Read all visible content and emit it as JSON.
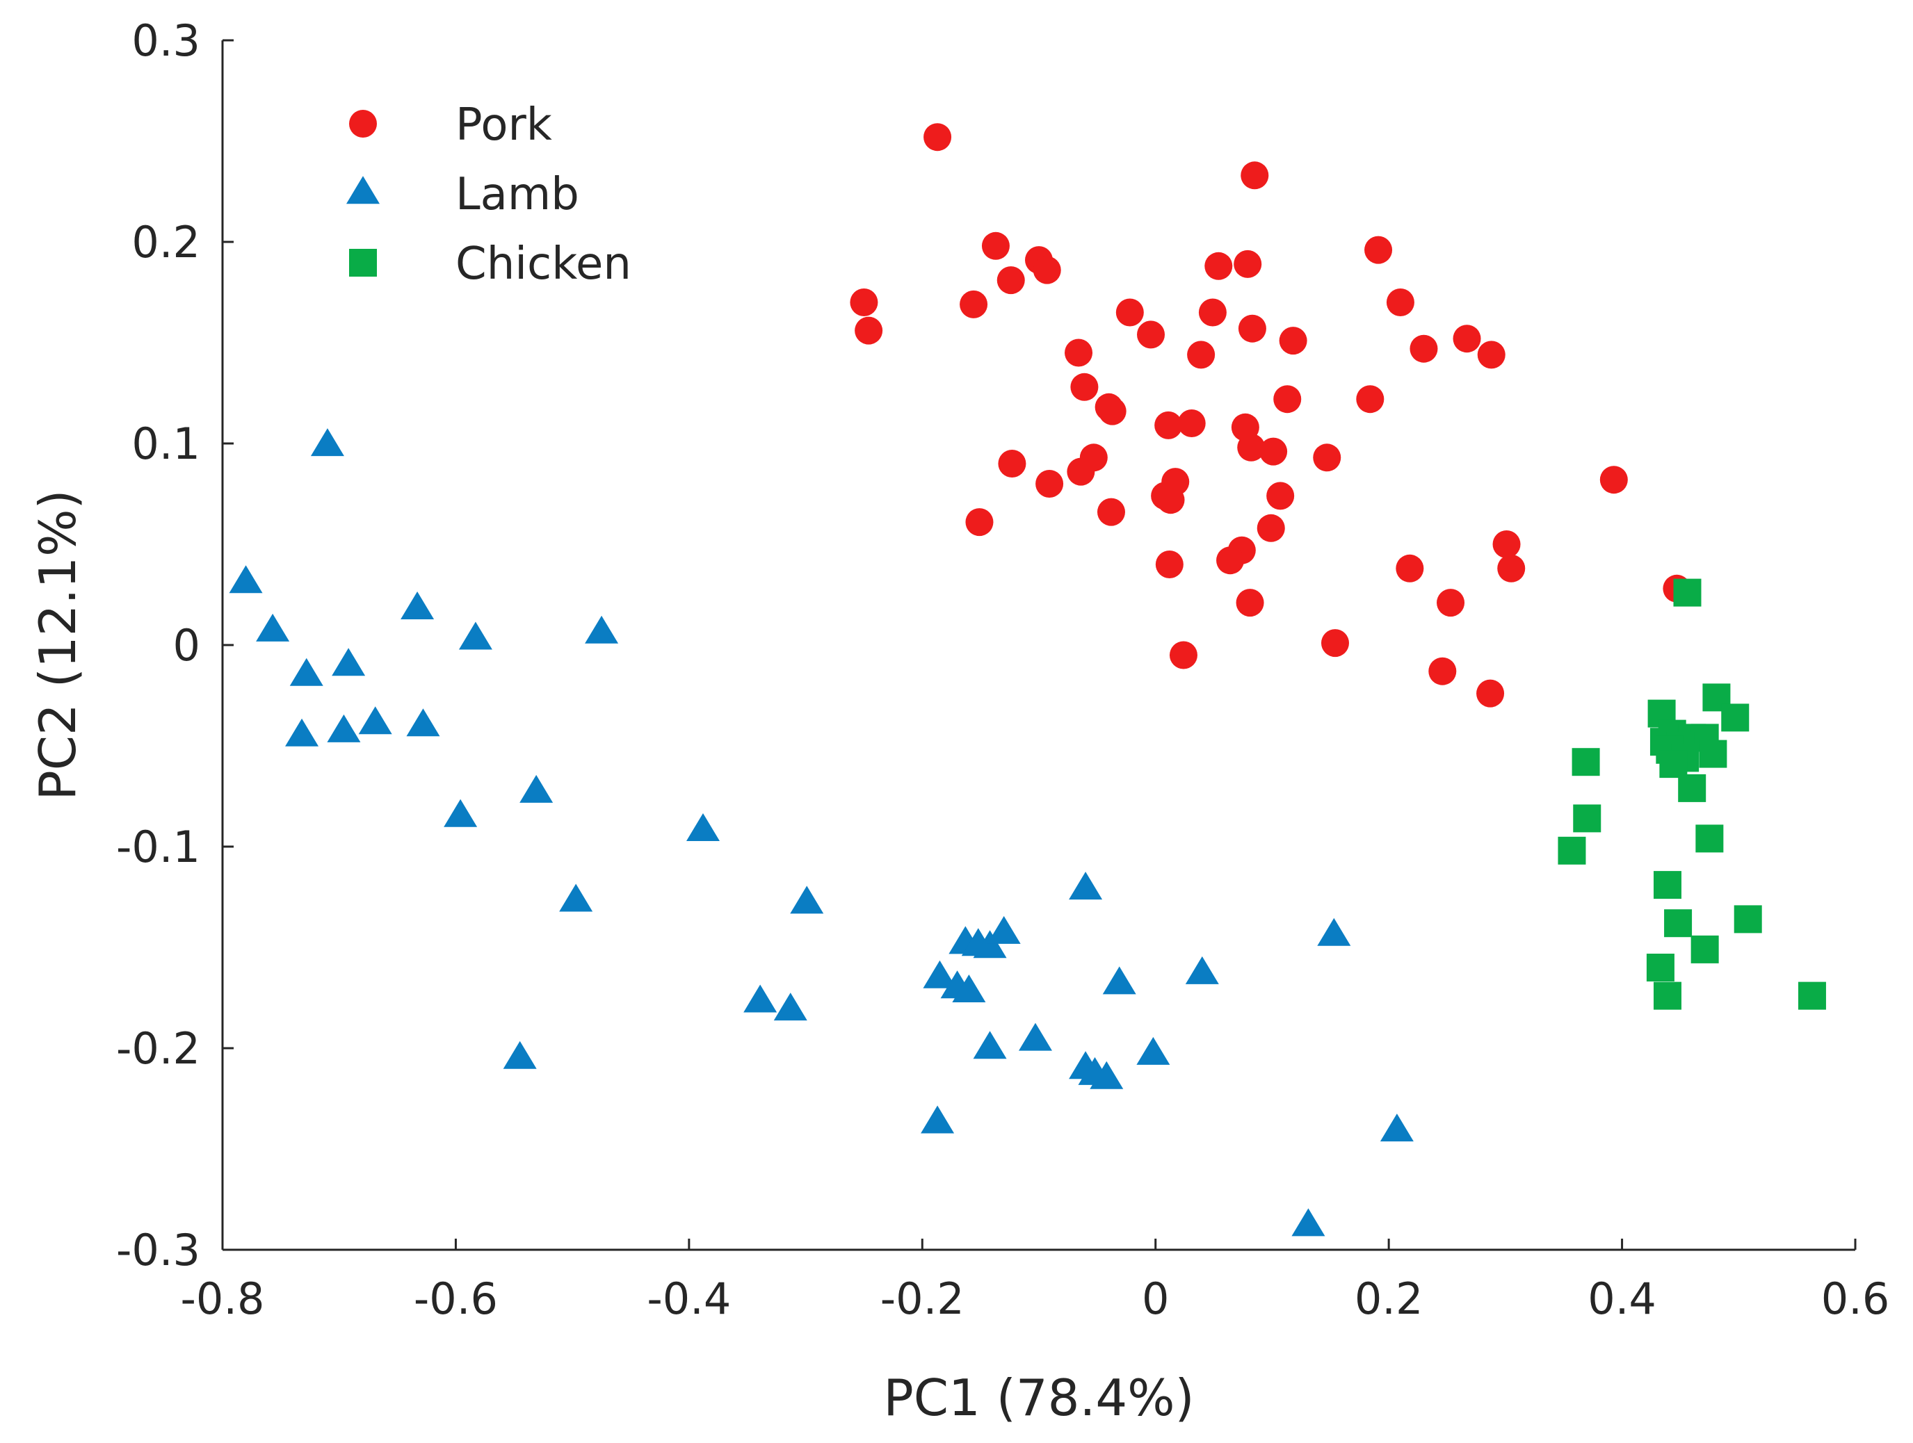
{
  "chart_data": {
    "type": "scatter",
    "title": "",
    "xlabel": "PC1 (78.4%)",
    "ylabel": "PC2 (12.1%)",
    "xlim": [
      -0.8,
      0.6
    ],
    "ylim": [
      -0.3,
      0.3
    ],
    "xticks": [
      -0.8,
      -0.6,
      -0.4,
      -0.2,
      0,
      0.2,
      0.4,
      0.6
    ],
    "xtick_labels": [
      "-0.8",
      "-0.6",
      "-0.4",
      "-0.2",
      "0",
      "0.2",
      "0.4",
      "0.6"
    ],
    "yticks": [
      -0.3,
      -0.2,
      -0.1,
      0,
      0.1,
      0.2,
      0.3
    ],
    "ytick_labels": [
      "-0.3",
      "-0.2",
      "-0.1",
      "0",
      "0.1",
      "0.2",
      "0.3"
    ],
    "grid": false,
    "legend_position": "top-left",
    "series": [
      {
        "name": "Pork",
        "marker": "circle",
        "color": "#ee1c1c",
        "points": [
          [
            -0.187,
            0.252
          ],
          [
            0.085,
            0.233
          ],
          [
            -0.137,
            0.198
          ],
          [
            -0.1,
            0.191
          ],
          [
            -0.093,
            0.186
          ],
          [
            -0.124,
            0.181
          ],
          [
            0.054,
            0.188
          ],
          [
            0.079,
            0.189
          ],
          [
            0.191,
            0.196
          ],
          [
            -0.25,
            0.17
          ],
          [
            -0.246,
            0.156
          ],
          [
            -0.156,
            0.169
          ],
          [
            -0.022,
            0.165
          ],
          [
            0.049,
            0.165
          ],
          [
            0.21,
            0.17
          ],
          [
            -0.004,
            0.154
          ],
          [
            0.083,
            0.157
          ],
          [
            0.118,
            0.151
          ],
          [
            0.267,
            0.152
          ],
          [
            0.23,
            0.147
          ],
          [
            0.288,
            0.144
          ],
          [
            -0.066,
            0.145
          ],
          [
            0.039,
            0.144
          ],
          [
            -0.061,
            0.128
          ],
          [
            -0.04,
            0.118
          ],
          [
            -0.037,
            0.116
          ],
          [
            0.113,
            0.122
          ],
          [
            0.184,
            0.122
          ],
          [
            0.011,
            0.109
          ],
          [
            0.031,
            0.11
          ],
          [
            0.077,
            0.108
          ],
          [
            -0.053,
            0.093
          ],
          [
            -0.064,
            0.086
          ],
          [
            0.082,
            0.098
          ],
          [
            0.101,
            0.096
          ],
          [
            0.147,
            0.093
          ],
          [
            -0.123,
            0.09
          ],
          [
            -0.091,
            0.08
          ],
          [
            0.017,
            0.081
          ],
          [
            0.393,
            0.082
          ],
          [
            0.008,
            0.074
          ],
          [
            0.013,
            0.072
          ],
          [
            0.107,
            0.074
          ],
          [
            -0.038,
            0.066
          ],
          [
            -0.151,
            0.061
          ],
          [
            0.099,
            0.058
          ],
          [
            0.074,
            0.047
          ],
          [
            0.064,
            0.042
          ],
          [
            0.301,
            0.05
          ],
          [
            0.012,
            0.04
          ],
          [
            0.218,
            0.038
          ],
          [
            0.305,
            0.038
          ],
          [
            0.447,
            0.028
          ],
          [
            0.081,
            0.021
          ],
          [
            0.253,
            0.021
          ],
          [
            0.154,
            0.001
          ],
          [
            0.024,
            -0.005
          ],
          [
            0.246,
            -0.013
          ],
          [
            0.287,
            -0.024
          ]
        ]
      },
      {
        "name": "Lamb",
        "marker": "triangle",
        "color": "#0a7dc3",
        "points": [
          [
            -0.71,
            0.099
          ],
          [
            -0.78,
            0.031
          ],
          [
            -0.757,
            0.007
          ],
          [
            -0.633,
            0.018
          ],
          [
            -0.583,
            0.003
          ],
          [
            -0.475,
            0.006
          ],
          [
            -0.728,
            -0.015
          ],
          [
            -0.692,
            -0.01
          ],
          [
            -0.732,
            -0.045
          ],
          [
            -0.696,
            -0.043
          ],
          [
            -0.669,
            -0.039
          ],
          [
            -0.628,
            -0.04
          ],
          [
            -0.596,
            -0.085
          ],
          [
            -0.531,
            -0.073
          ],
          [
            -0.388,
            -0.092
          ],
          [
            -0.497,
            -0.127
          ],
          [
            -0.299,
            -0.128
          ],
          [
            -0.06,
            -0.121
          ],
          [
            -0.163,
            -0.148
          ],
          [
            -0.152,
            -0.149
          ],
          [
            -0.142,
            -0.15
          ],
          [
            -0.13,
            -0.143
          ],
          [
            0.153,
            -0.144
          ],
          [
            -0.185,
            -0.165
          ],
          [
            -0.17,
            -0.17
          ],
          [
            -0.16,
            -0.172
          ],
          [
            -0.031,
            -0.168
          ],
          [
            0.04,
            -0.163
          ],
          [
            -0.339,
            -0.177
          ],
          [
            -0.313,
            -0.181
          ],
          [
            -0.142,
            -0.2
          ],
          [
            -0.103,
            -0.196
          ],
          [
            -0.002,
            -0.203
          ],
          [
            -0.545,
            -0.205
          ],
          [
            -0.06,
            -0.21
          ],
          [
            -0.052,
            -0.213
          ],
          [
            -0.042,
            -0.215
          ],
          [
            -0.187,
            -0.237
          ],
          [
            0.207,
            -0.241
          ],
          [
            0.131,
            -0.288
          ]
        ]
      },
      {
        "name": "Chicken",
        "marker": "square",
        "color": "#09ac47",
        "points": [
          [
            0.456,
            0.026
          ],
          [
            0.481,
            -0.026
          ],
          [
            0.434,
            -0.034
          ],
          [
            0.497,
            -0.036
          ],
          [
            0.443,
            -0.044
          ],
          [
            0.46,
            -0.046
          ],
          [
            0.471,
            -0.046
          ],
          [
            0.436,
            -0.048
          ],
          [
            0.45,
            -0.05
          ],
          [
            0.441,
            -0.052
          ],
          [
            0.478,
            -0.054
          ],
          [
            0.454,
            -0.056
          ],
          [
            0.369,
            -0.058
          ],
          [
            0.444,
            -0.059
          ],
          [
            0.46,
            -0.071
          ],
          [
            0.37,
            -0.086
          ],
          [
            0.475,
            -0.096
          ],
          [
            0.357,
            -0.102
          ],
          [
            0.439,
            -0.119
          ],
          [
            0.448,
            -0.138
          ],
          [
            0.508,
            -0.136
          ],
          [
            0.471,
            -0.151
          ],
          [
            0.433,
            -0.16
          ],
          [
            0.439,
            -0.174
          ],
          [
            0.563,
            -0.174
          ]
        ]
      }
    ]
  }
}
